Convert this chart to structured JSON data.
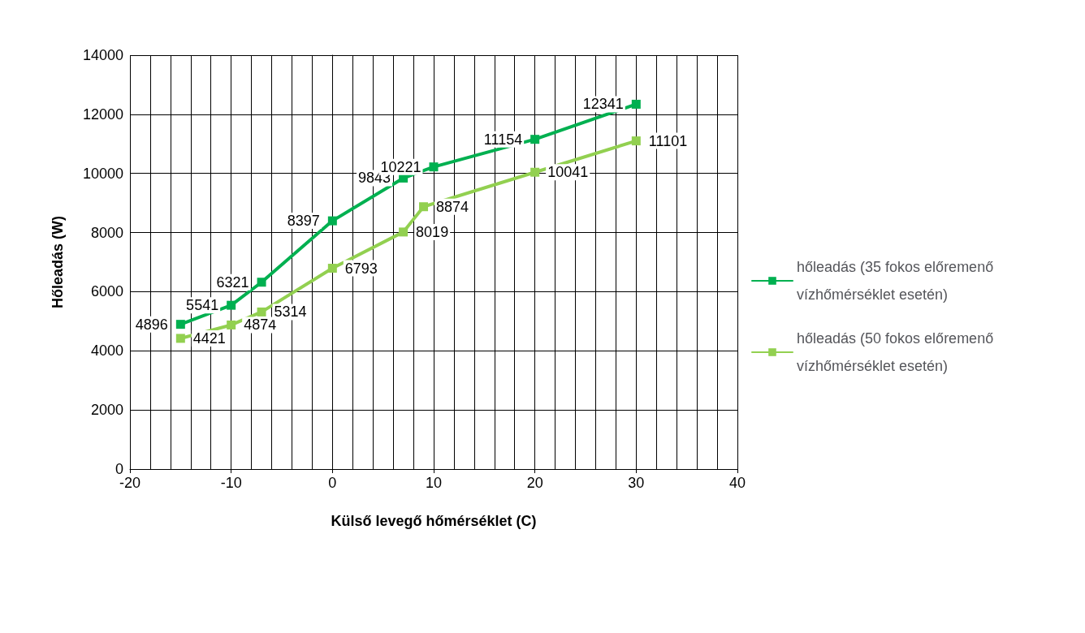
{
  "chart_data": {
    "type": "line",
    "xlabel": "Külső levegő hőmérséklet (C)",
    "ylabel": "Hőleadás (W)",
    "xlim": [
      -20,
      40
    ],
    "xticks": [
      -20,
      -10,
      0,
      10,
      20,
      30,
      40
    ],
    "ylim": [
      0,
      14000
    ],
    "yticks": [
      0,
      2000,
      4000,
      6000,
      8000,
      10000,
      12000,
      14000
    ],
    "grid": true,
    "legend": "right",
    "marker": "square",
    "data_labels": true,
    "series": [
      {
        "name": "hőleadás (35 fokos előremenő vízhőmérséklet esetén)",
        "color": "#00b050",
        "x": [
          -15,
          -10,
          -7,
          0,
          7,
          10,
          20,
          30
        ],
        "values": [
          4896,
          5541,
          6321,
          8397,
          9843,
          10221,
          11154,
          12341
        ]
      },
      {
        "name": "hőleadás (50 fokos előremenő vízhőmérséklet esetén)",
        "color": "#92d050",
        "x": [
          -15,
          -10,
          -7,
          0,
          7,
          9,
          20,
          30
        ],
        "values": [
          4421,
          4874,
          5314,
          6793,
          8019,
          8874,
          10041,
          11101
        ]
      }
    ]
  }
}
